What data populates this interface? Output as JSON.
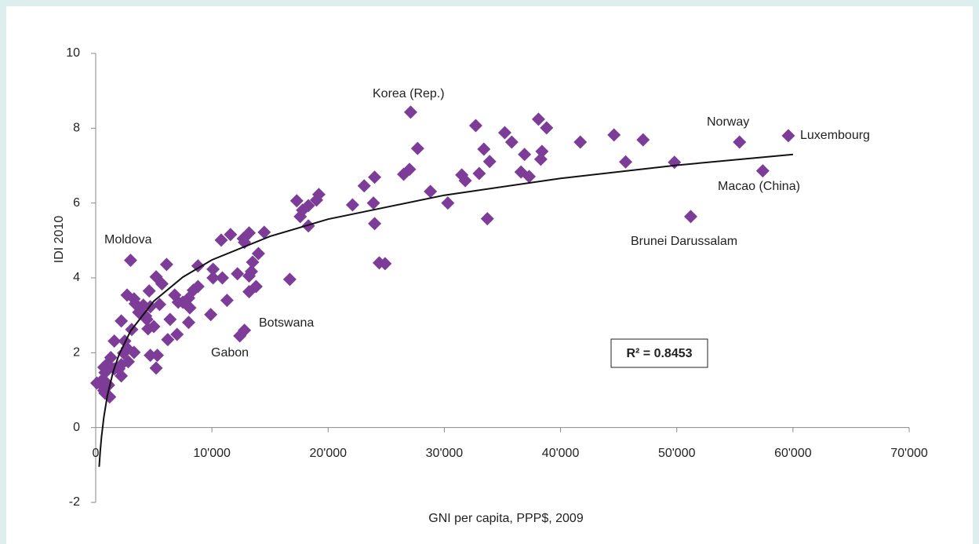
{
  "chart_data": {
    "type": "scatter",
    "xlabel": "GNI per capita, PPP$, 2009",
    "ylabel": "IDI 2010",
    "color": "#7d3c98",
    "xlim": [
      0,
      70000
    ],
    "ylim": [
      -2,
      10
    ],
    "xticks": [
      0,
      {
        "value": 10000,
        "label": "10'000"
      },
      {
        "value": 20000,
        "label": "20'000"
      },
      {
        "value": 30000,
        "label": "30'000"
      },
      {
        "value": 40000,
        "label": "40'000"
      },
      {
        "value": 50000,
        "label": "50'000"
      },
      {
        "value": 60000,
        "label": "60'000"
      },
      {
        "value": 70000,
        "label": "70'000"
      }
    ],
    "yticks": [
      -2,
      0,
      2,
      4,
      6,
      8,
      10
    ],
    "x": [
      59600,
      55400,
      57400,
      51200,
      49800,
      44600,
      45600,
      47100,
      41700,
      38100,
      38800,
      38400,
      38300,
      37300,
      36900,
      36600,
      35800,
      35200,
      32700,
      33400,
      33900,
      33000,
      33700,
      31800,
      31500,
      30300,
      28800,
      27700,
      27100,
      27000,
      26500,
      24900,
      24400,
      24000,
      24000,
      23900,
      23100,
      22100,
      19200,
      19000,
      18300,
      18300,
      17800,
      17600,
      17300,
      16700,
      14500,
      14000,
      13800,
      13500,
      13200,
      13400,
      13200,
      13200,
      12800,
      12700,
      12800,
      12400,
      12200,
      11600,
      11300,
      10800,
      10900,
      10100,
      10100,
      9900,
      8800,
      8800,
      8400,
      8000,
      8100,
      8000,
      7500,
      7100,
      6800,
      7000,
      6200,
      6400,
      6100,
      5700,
      5500,
      5200,
      5200,
      5300,
      4700,
      5000,
      4600,
      4300,
      4700,
      4400,
      4500,
      4100,
      3700,
      3400,
      3300,
      3000,
      2700,
      3100,
      3300,
      2800,
      2500,
      2700,
      2200,
      2400,
      2200,
      2000,
      2200,
      1600,
      1300,
      1600,
      1000,
      800,
      600,
      1000,
      400,
      100,
      1200,
      800,
      1100,
      700,
      700
    ],
    "values": [
      7.8,
      7.63,
      6.86,
      5.64,
      7.09,
      7.82,
      7.1,
      7.69,
      7.63,
      8.24,
      8.01,
      7.38,
      7.17,
      6.71,
      7.3,
      6.83,
      7.63,
      7.88,
      8.07,
      7.44,
      7.11,
      6.79,
      5.58,
      6.6,
      6.75,
      6.0,
      6.31,
      7.46,
      8.43,
      6.9,
      6.77,
      4.38,
      4.4,
      6.69,
      5.45,
      6.0,
      6.46,
      5.95,
      6.23,
      6.08,
      5.93,
      5.39,
      5.81,
      5.64,
      6.06,
      3.96,
      5.22,
      4.65,
      3.77,
      4.42,
      5.2,
      4.17,
      4.05,
      3.63,
      4.95,
      5.05,
      2.6,
      2.45,
      4.11,
      5.16,
      3.4,
      5.01,
      4.0,
      4.0,
      4.23,
      3.02,
      4.32,
      3.77,
      3.67,
      3.46,
      3.2,
      2.81,
      3.35,
      3.35,
      3.54,
      2.49,
      2.35,
      2.89,
      4.36,
      3.84,
      3.29,
      4.03,
      1.59,
      1.93,
      1.93,
      2.7,
      3.65,
      2.98,
      3.23,
      2.89,
      2.64,
      3.27,
      3.08,
      3.31,
      3.44,
      4.47,
      3.54,
      2.62,
      2.01,
      1.76,
      2.31,
      2.12,
      2.85,
      1.99,
      1.68,
      1.57,
      1.38,
      2.31,
      1.87,
      1.57,
      1.7,
      1.47,
      1.28,
      1.17,
      1.17,
      1.19,
      0.82,
      0.92,
      1.13,
      1.61,
      0.99
    ],
    "trendline": {
      "x": [
        300,
        400,
        500,
        700,
        1000,
        1500,
        2000,
        3000,
        5000,
        7500,
        10000,
        15000,
        20000,
        30000,
        40000,
        50000,
        60000
      ],
      "values": [
        -1.05,
        -0.6,
        -0.25,
        0.28,
        0.85,
        1.49,
        1.94,
        2.58,
        3.38,
        4.02,
        4.48,
        5.11,
        5.57,
        6.21,
        6.66,
        7.01,
        7.3
      ]
    },
    "annotations": [
      "Korea (Rep.)",
      "Norway",
      "Luxembourg",
      "Macao (China)",
      "Brunei Darussalam",
      "Moldova",
      "Botswana",
      "Gabon",
      "R² = 0.8453"
    ]
  }
}
